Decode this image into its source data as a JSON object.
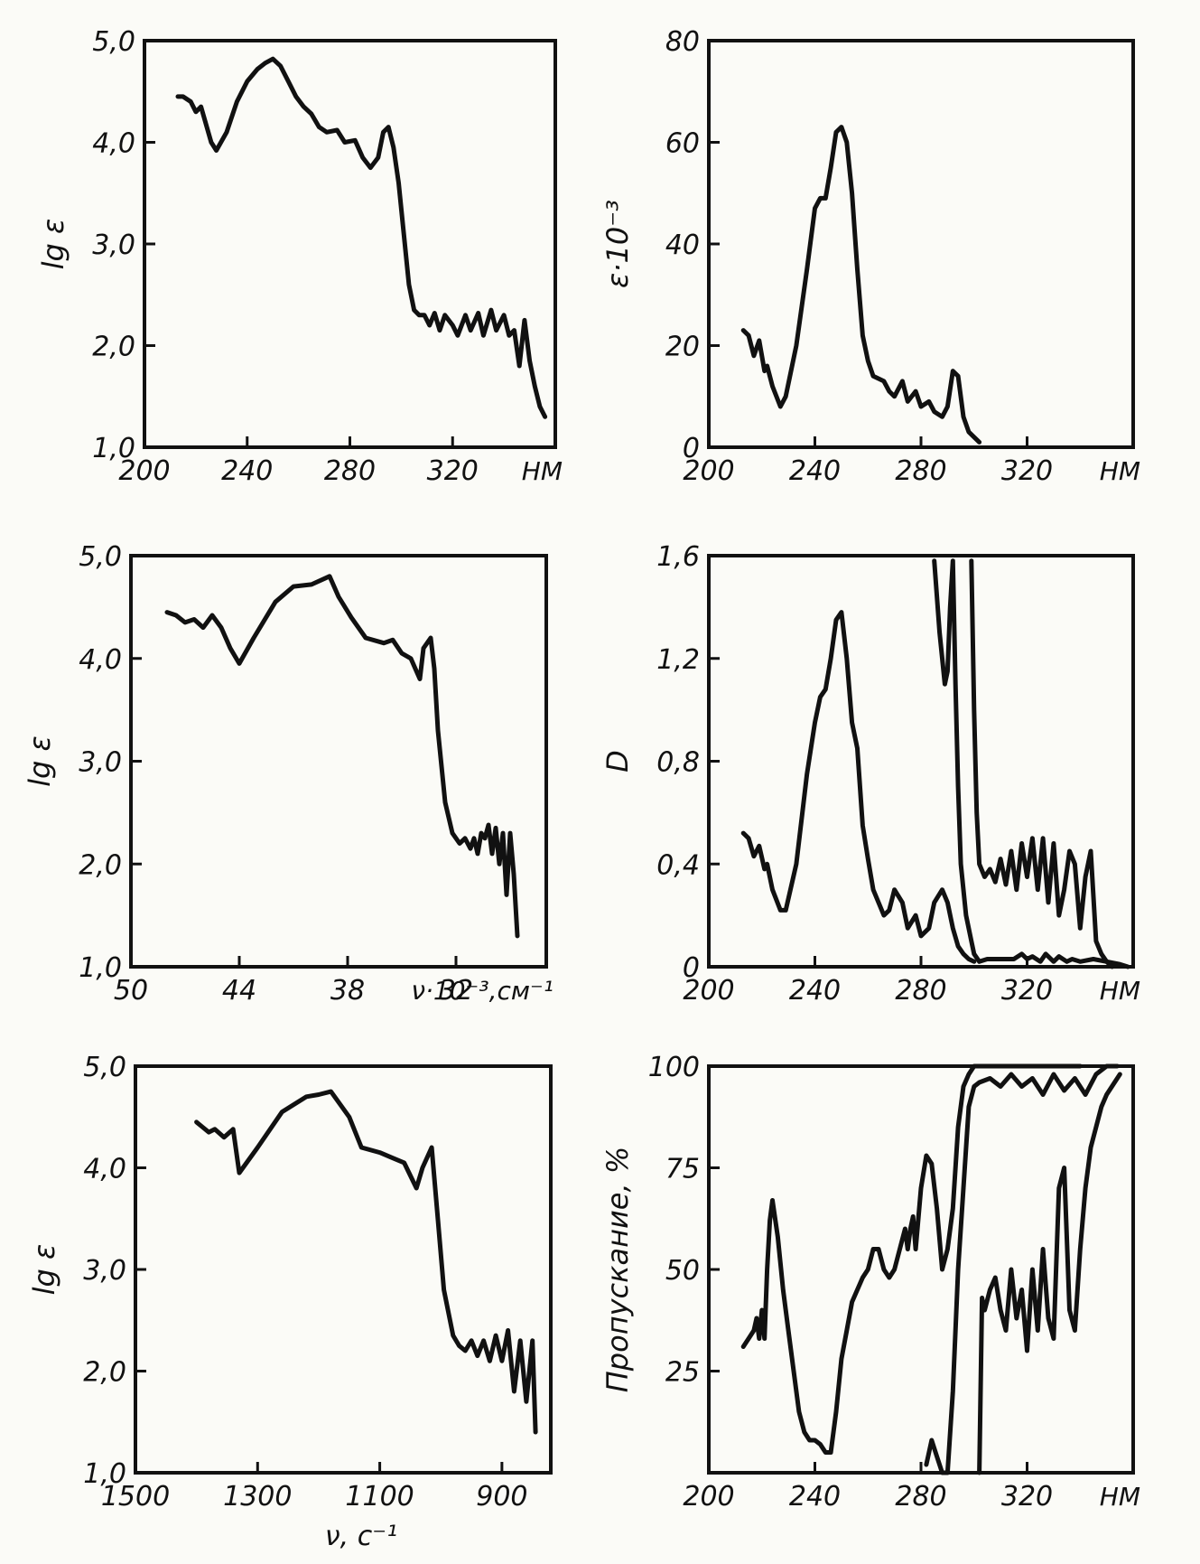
{
  "charts": [
    {
      "id": "p1",
      "type": "line",
      "xlim": [
        200,
        360
      ],
      "ylim": [
        1.0,
        5.0
      ],
      "x_ticks": [
        "200",
        "240",
        "280",
        "320"
      ],
      "y_ticks": [
        "1,0",
        "2,0",
        "3,0",
        "4,0",
        "5,0"
      ],
      "x_unit": "НМ",
      "ylabel": "lg ε",
      "series": [
        {
          "x": [
            213,
            215,
            218,
            220,
            222,
            226,
            228,
            232,
            236,
            240,
            244,
            247,
            250,
            253,
            256,
            259,
            262,
            265,
            268,
            271,
            275,
            278,
            282,
            285,
            288,
            291,
            293,
            295,
            297,
            299,
            301,
            303,
            305,
            307,
            309,
            311,
            313,
            315,
            317,
            320,
            322,
            325,
            327,
            330,
            332,
            335,
            337,
            340,
            342,
            344,
            346,
            348,
            350,
            352,
            354,
            356
          ],
          "y": [
            4.45,
            4.45,
            4.4,
            4.3,
            4.35,
            4.0,
            3.92,
            4.1,
            4.4,
            4.6,
            4.72,
            4.78,
            4.82,
            4.75,
            4.6,
            4.45,
            4.35,
            4.28,
            4.15,
            4.1,
            4.12,
            4.0,
            4.02,
            3.85,
            3.75,
            3.85,
            4.1,
            4.15,
            3.95,
            3.6,
            3.1,
            2.6,
            2.35,
            2.3,
            2.3,
            2.2,
            2.32,
            2.15,
            2.3,
            2.2,
            2.1,
            2.3,
            2.15,
            2.32,
            2.1,
            2.35,
            2.15,
            2.3,
            2.1,
            2.15,
            1.8,
            2.25,
            1.85,
            1.6,
            1.4,
            1.3
          ]
        }
      ]
    },
    {
      "id": "p2",
      "type": "line",
      "xlim": [
        200,
        360
      ],
      "ylim": [
        0,
        80
      ],
      "x_ticks": [
        "200",
        "240",
        "280",
        "320"
      ],
      "y_ticks": [
        "0",
        "20",
        "40",
        "60",
        "80"
      ],
      "x_unit": "НМ",
      "ylabel": "ε·10⁻³",
      "series": [
        {
          "x": [
            213,
            215,
            217,
            219,
            221,
            222,
            224,
            227,
            229,
            233,
            237,
            240,
            242,
            244,
            246,
            248,
            250,
            252,
            254,
            256,
            258,
            260,
            262,
            266,
            268,
            270,
            273,
            275,
            278,
            280,
            283,
            285,
            288,
            290,
            292,
            294,
            296,
            298,
            300,
            302
          ],
          "y": [
            23,
            22,
            18,
            21,
            15,
            16,
            12,
            8,
            10,
            20,
            35,
            47,
            49,
            49,
            55,
            62,
            63,
            60,
            50,
            35,
            22,
            17,
            14,
            13,
            11,
            10,
            13,
            9,
            11,
            8,
            9,
            7,
            6,
            8,
            15,
            14,
            6,
            3,
            2,
            1
          ]
        }
      ]
    },
    {
      "id": "p3",
      "type": "line",
      "xlim": [
        50,
        27
      ],
      "ylim": [
        1.0,
        5.0
      ],
      "x_ticks": [
        "50",
        "44",
        "38",
        "32"
      ],
      "y_ticks": [
        "1,0",
        "2,0",
        "3,0",
        "4,0",
        "5,0"
      ],
      "x_unit": "ν·10⁻³,см⁻¹",
      "ylabel": "lg ε",
      "series": [
        {
          "x": [
            48.0,
            47.5,
            47.0,
            46.5,
            46.0,
            45.5,
            45.0,
            44.5,
            44.0,
            43.2,
            42.0,
            41.0,
            40.0,
            39.0,
            38.5,
            37.8,
            37.0,
            36.0,
            35.5,
            35.0,
            34.5,
            34.0,
            33.8,
            33.4,
            33.2,
            33.0,
            32.6,
            32.2,
            31.8,
            31.5,
            31.2,
            31.0,
            30.8,
            30.6,
            30.4,
            30.2,
            30.0,
            29.8,
            29.6,
            29.4,
            29.2,
            29.0,
            28.8,
            28.6
          ],
          "y": [
            4.45,
            4.42,
            4.35,
            4.38,
            4.3,
            4.42,
            4.3,
            4.1,
            3.95,
            4.2,
            4.55,
            4.7,
            4.72,
            4.8,
            4.6,
            4.4,
            4.2,
            4.15,
            4.18,
            4.05,
            4.0,
            3.8,
            4.1,
            4.2,
            3.9,
            3.3,
            2.6,
            2.3,
            2.2,
            2.25,
            2.15,
            2.25,
            2.1,
            2.3,
            2.25,
            2.38,
            2.1,
            2.35,
            2.0,
            2.3,
            1.7,
            2.3,
            1.9,
            1.3
          ]
        }
      ]
    },
    {
      "id": "p4",
      "type": "line",
      "xlim": [
        200,
        360
      ],
      "ylim": [
        0,
        1.6
      ],
      "x_ticks": [
        "200",
        "240",
        "280",
        "320"
      ],
      "y_ticks": [
        "0",
        "0,4",
        "0,8",
        "1,2",
        "1,6"
      ],
      "x_unit": "НМ",
      "ylabel": "D",
      "series": [
        {
          "x": [
            213,
            215,
            217,
            219,
            221,
            222,
            224,
            227,
            229,
            233,
            237,
            240,
            242,
            244,
            246,
            248,
            250,
            252,
            254,
            256,
            258,
            260,
            262,
            266,
            268,
            270,
            273,
            275,
            278,
            280,
            283,
            285,
            288,
            290,
            292,
            294,
            296,
            298,
            300
          ],
          "y": [
            0.52,
            0.5,
            0.43,
            0.47,
            0.38,
            0.4,
            0.3,
            0.22,
            0.22,
            0.4,
            0.75,
            0.95,
            1.05,
            1.08,
            1.2,
            1.35,
            1.38,
            1.2,
            0.95,
            0.85,
            0.55,
            0.42,
            0.3,
            0.2,
            0.22,
            0.3,
            0.25,
            0.15,
            0.2,
            0.12,
            0.15,
            0.25,
            0.3,
            0.25,
            0.15,
            0.08,
            0.05,
            0.03,
            0.02
          ]
        },
        {
          "x": [
            285,
            287,
            289,
            290,
            291,
            292,
            293,
            294,
            295,
            297,
            299,
            300,
            302,
            305,
            310,
            315,
            318,
            320,
            322,
            325,
            327,
            330,
            332,
            335,
            337,
            340,
            345,
            350,
            355,
            358
          ],
          "y": [
            1.58,
            1.3,
            1.1,
            1.15,
            1.4,
            1.58,
            1.1,
            0.7,
            0.4,
            0.2,
            0.1,
            0.05,
            0.02,
            0.03,
            0.03,
            0.03,
            0.05,
            0.03,
            0.04,
            0.02,
            0.05,
            0.02,
            0.04,
            0.02,
            0.03,
            0.02,
            0.03,
            0.02,
            0.01,
            0.0
          ]
        },
        {
          "x": [
            299,
            300,
            301,
            302,
            304,
            306,
            308,
            310,
            312,
            314,
            316,
            318,
            320,
            322,
            324,
            326,
            328,
            330,
            332,
            334,
            336,
            338,
            340,
            342,
            344,
            346,
            348,
            350,
            352
          ],
          "y": [
            1.58,
            1.0,
            0.6,
            0.4,
            0.35,
            0.38,
            0.33,
            0.42,
            0.32,
            0.45,
            0.3,
            0.48,
            0.35,
            0.5,
            0.3,
            0.5,
            0.25,
            0.48,
            0.2,
            0.3,
            0.45,
            0.4,
            0.15,
            0.35,
            0.45,
            0.1,
            0.05,
            0.02,
            0.0
          ]
        }
      ]
    },
    {
      "id": "p5",
      "type": "line",
      "xlim": [
        1500,
        820
      ],
      "ylim": [
        1.0,
        5.0
      ],
      "x_ticks": [
        "1500",
        "1300",
        "1100",
        "900"
      ],
      "y_ticks": [
        "1,0",
        "2,0",
        "3,0",
        "4,0",
        "5,0"
      ],
      "x_unit": "",
      "xlabel": "ν, с⁻¹",
      "ylabel": "lg ε",
      "series": [
        {
          "x": [
            1400,
            1390,
            1380,
            1370,
            1355,
            1340,
            1330,
            1300,
            1260,
            1220,
            1200,
            1180,
            1150,
            1130,
            1100,
            1080,
            1060,
            1040,
            1030,
            1015,
            1005,
            995,
            980,
            970,
            960,
            950,
            940,
            930,
            920,
            910,
            900,
            890,
            880,
            870,
            860,
            850,
            845
          ],
          "y": [
            4.45,
            4.4,
            4.35,
            4.38,
            4.3,
            4.38,
            3.95,
            4.2,
            4.55,
            4.7,
            4.72,
            4.75,
            4.5,
            4.2,
            4.15,
            4.1,
            4.05,
            3.8,
            4.0,
            4.2,
            3.5,
            2.8,
            2.35,
            2.25,
            2.2,
            2.3,
            2.15,
            2.3,
            2.1,
            2.35,
            2.1,
            2.4,
            1.8,
            2.3,
            1.7,
            2.3,
            1.4
          ]
        }
      ]
    },
    {
      "id": "p6",
      "type": "line",
      "xlim": [
        200,
        360
      ],
      "ylim": [
        0,
        100
      ],
      "x_ticks": [
        "200",
        "240",
        "280",
        "320"
      ],
      "y_ticks": [
        "25",
        "50",
        "75",
        "100"
      ],
      "x_unit": "НМ",
      "ylabel": "Пропускание, %",
      "series": [
        {
          "x": [
            213,
            215,
            217,
            218,
            219,
            220,
            221,
            222,
            223,
            224,
            226,
            228,
            230,
            232,
            234,
            236,
            238,
            240,
            242,
            244,
            246,
            248,
            250,
            252,
            254,
            256,
            258,
            260,
            262,
            264,
            266,
            268,
            270,
            272,
            274,
            275,
            276,
            277,
            278,
            280,
            282,
            284,
            286,
            288,
            290,
            292,
            294,
            296,
            298,
            300,
            302,
            305,
            310,
            315,
            320,
            325,
            330,
            335,
            340
          ],
          "y": [
            31,
            33,
            35,
            38,
            33,
            40,
            33,
            50,
            62,
            67,
            58,
            45,
            35,
            25,
            15,
            10,
            8,
            8,
            7,
            5,
            5,
            15,
            28,
            35,
            42,
            45,
            48,
            50,
            55,
            55,
            50,
            48,
            50,
            55,
            60,
            55,
            60,
            63,
            55,
            70,
            78,
            76,
            65,
            50,
            55,
            65,
            85,
            95,
            98,
            100,
            100,
            100,
            100,
            100,
            100,
            100,
            100,
            100,
            100
          ]
        },
        {
          "x": [
            282,
            284,
            286,
            288,
            290,
            292,
            294,
            296,
            298,
            300,
            302,
            306,
            310,
            314,
            318,
            322,
            326,
            330,
            334,
            338,
            342,
            346,
            350,
            354
          ],
          "y": [
            2,
            8,
            4,
            0,
            0,
            20,
            50,
            70,
            90,
            95,
            96,
            97,
            95,
            98,
            95,
            97,
            93,
            98,
            94,
            97,
            93,
            98,
            100,
            100
          ]
        },
        {
          "x": [
            302,
            303,
            304,
            306,
            308,
            310,
            312,
            314,
            316,
            318,
            320,
            322,
            324,
            326,
            328,
            330,
            332,
            334,
            336,
            338,
            340,
            342,
            344,
            346,
            348,
            350,
            353,
            355
          ],
          "y": [
            0,
            43,
            40,
            45,
            48,
            40,
            35,
            50,
            38,
            45,
            30,
            50,
            35,
            55,
            38,
            33,
            70,
            75,
            40,
            35,
            55,
            70,
            80,
            85,
            90,
            93,
            96,
            98
          ]
        }
      ]
    }
  ]
}
